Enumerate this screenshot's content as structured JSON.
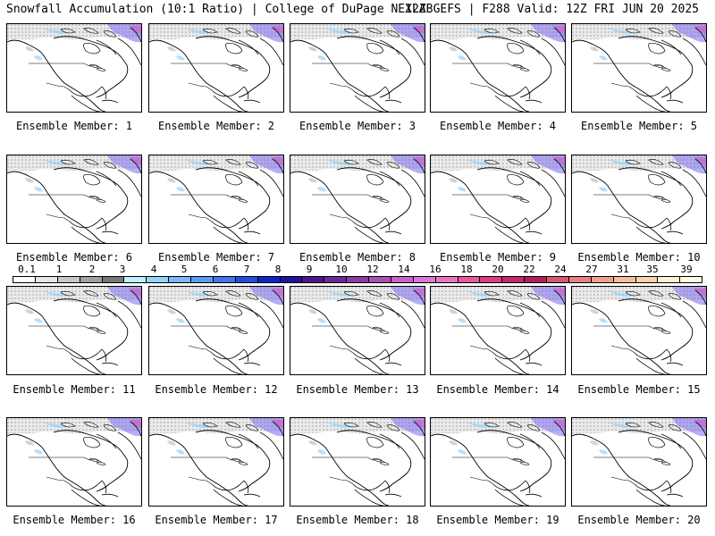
{
  "header": {
    "left": "Snowfall Accumulation (10:1 Ratio) | College of DuPage NEXLAB",
    "right": "12Z GEFS | F288 Valid: 12Z FRI JUN 20 2025"
  },
  "members": [
    {
      "label": "Ensemble Member: 1"
    },
    {
      "label": "Ensemble Member: 2"
    },
    {
      "label": "Ensemble Member: 3"
    },
    {
      "label": "Ensemble Member: 4"
    },
    {
      "label": "Ensemble Member: 5"
    },
    {
      "label": "Ensemble Member: 6"
    },
    {
      "label": "Ensemble Member: 7"
    },
    {
      "label": "Ensemble Member: 8"
    },
    {
      "label": "Ensemble Member: 9"
    },
    {
      "label": "Ensemble Member: 10"
    },
    {
      "label": "Ensemble Member: 11"
    },
    {
      "label": "Ensemble Member: 12"
    },
    {
      "label": "Ensemble Member: 13"
    },
    {
      "label": "Ensemble Member: 14"
    },
    {
      "label": "Ensemble Member: 15"
    },
    {
      "label": "Ensemble Member: 16"
    },
    {
      "label": "Ensemble Member: 17"
    },
    {
      "label": "Ensemble Member: 18"
    },
    {
      "label": "Ensemble Member: 19"
    },
    {
      "label": "Ensemble Member: 20"
    }
  ],
  "colorbar": {
    "ticks": [
      "0.1",
      "1",
      "2",
      "3",
      "4",
      "5",
      "6",
      "7",
      "8",
      "9",
      "10",
      "12",
      "14",
      "16",
      "18",
      "20",
      "22",
      "24",
      "27",
      "31",
      "35",
      "39"
    ],
    "colors": [
      "#ffffff",
      "#e6e6e6",
      "#c8c8c8",
      "#a0a0a0",
      "#787878",
      "#bfefff",
      "#96d2fa",
      "#78b9fa",
      "#5a9bf0",
      "#3c78e6",
      "#1e50dc",
      "#0a28c8",
      "#1e14a0",
      "#50148c",
      "#6e2896",
      "#8c3ca0",
      "#aa50b4",
      "#c864c8",
      "#dc78d2",
      "#e678be",
      "#e65a9b",
      "#dc3c82",
      "#c8286e",
      "#b41e5a",
      "#d25a6e",
      "#e68282",
      "#f0a08c",
      "#f5be9b",
      "#fad2af",
      "#fff0d2",
      "#fffae6"
    ]
  }
}
